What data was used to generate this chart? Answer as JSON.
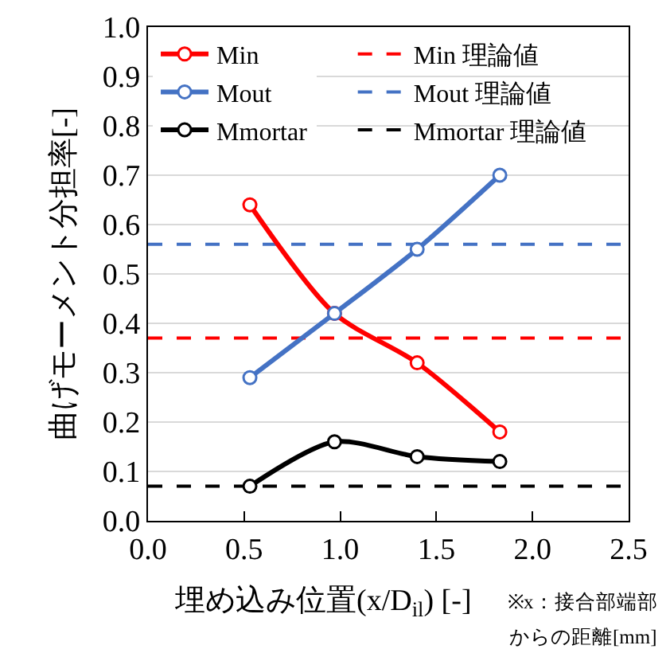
{
  "chart_data": {
    "type": "line",
    "xlabel": "埋め込み位置(x/D$_{il}$) [-]",
    "ylabel": "曲げモーメント分担率[-]",
    "x": [
      0.53,
      0.97,
      1.4,
      1.83
    ],
    "series": [
      {
        "name": "Min",
        "color": "#ff0000",
        "values": [
          0.64,
          0.42,
          0.32,
          0.18
        ]
      },
      {
        "name": "Mout",
        "color": "#4472c4",
        "values": [
          0.29,
          0.42,
          0.55,
          0.7
        ]
      },
      {
        "name": "Mmortar",
        "color": "#000000",
        "values": [
          0.07,
          0.16,
          0.13,
          0.12
        ]
      }
    ],
    "ref_lines": [
      {
        "axis": "y",
        "value": 0.37,
        "label": "Min 理論値",
        "color": "#ff0000",
        "line_style": "dashed"
      },
      {
        "axis": "y",
        "value": 0.56,
        "label": "Mout 理論値",
        "color": "#4472c4",
        "line_style": "dashed"
      },
      {
        "axis": "y",
        "value": 0.07,
        "label": "Mmortar 理論値",
        "color": "#000000",
        "line_style": "dashed"
      }
    ],
    "xlim": [
      0,
      2.5
    ],
    "xticks": [
      {
        "value": 0,
        "label": "0.0"
      },
      {
        "value": 0.5,
        "label": "0.5"
      },
      {
        "value": 1,
        "label": "1.0"
      },
      {
        "value": 1.5,
        "label": "1.5"
      },
      {
        "value": 2,
        "label": "2.0"
      },
      {
        "value": 2.5,
        "label": "2.5"
      }
    ],
    "ylim": [
      0,
      1
    ],
    "yticks": [
      {
        "value": 0,
        "label": "0.0"
      },
      {
        "value": 0.1,
        "label": "0.1"
      },
      {
        "value": 0.2,
        "label": "0.2"
      },
      {
        "value": 0.3,
        "label": "0.3"
      },
      {
        "value": 0.4,
        "label": "0.4"
      },
      {
        "value": 0.5,
        "label": "0.5"
      },
      {
        "value": 0.6,
        "label": "0.6"
      },
      {
        "value": 0.7,
        "label": "0.7"
      },
      {
        "value": 0.8,
        "label": "0.8"
      },
      {
        "value": 0.9,
        "label": "0.9"
      },
      {
        "value": 1,
        "label": "1.0"
      }
    ],
    "grid": "y",
    "legend": "top",
    "marker": "circle",
    "line_style": "solid",
    "annotations": [
      "※x：接合部端部",
      "からの距離[mm]"
    ]
  }
}
